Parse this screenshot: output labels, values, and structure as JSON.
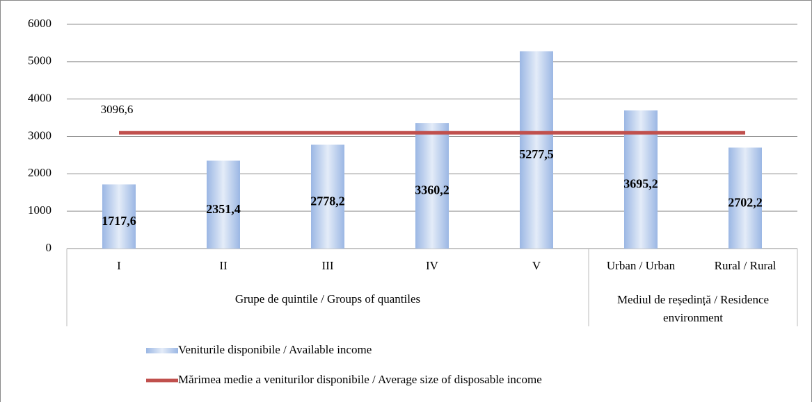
{
  "chart_data": {
    "type": "bar",
    "categories": [
      "I",
      "II",
      "III",
      "IV",
      "V",
      "Urban / Urban",
      "Rural / Rural"
    ],
    "group_labels": [
      "Grupe de quintile / Groups of quantiles",
      "Mediul de reședință / Residence environment"
    ],
    "series": [
      {
        "name": "Veniturile disponibile / Available income",
        "type": "bar",
        "color": "#9bb7e4",
        "values": [
          1717.6,
          2351.4,
          2778.2,
          3360.2,
          5277.5,
          3695.2,
          2702.2
        ],
        "value_labels": [
          "1717,6",
          "2351,4",
          "2778,2",
          "3360,2",
          "5277,5",
          "3695,2",
          "2702,2"
        ]
      },
      {
        "name": "Mărimea medie a veniturilor disponibile / Average size of disposable income",
        "type": "line",
        "color": "#c0504d",
        "values": [
          3096.6,
          3096.6,
          3096.6,
          3096.6,
          3096.6,
          3096.6,
          3096.6
        ],
        "value_labels": [
          "3096,6",
          null,
          null,
          null,
          null,
          null,
          null
        ]
      }
    ],
    "ylim": [
      0,
      6000
    ],
    "yticks": [
      0,
      1000,
      2000,
      3000,
      4000,
      5000,
      6000
    ],
    "grid": true,
    "legend": "bottom"
  }
}
